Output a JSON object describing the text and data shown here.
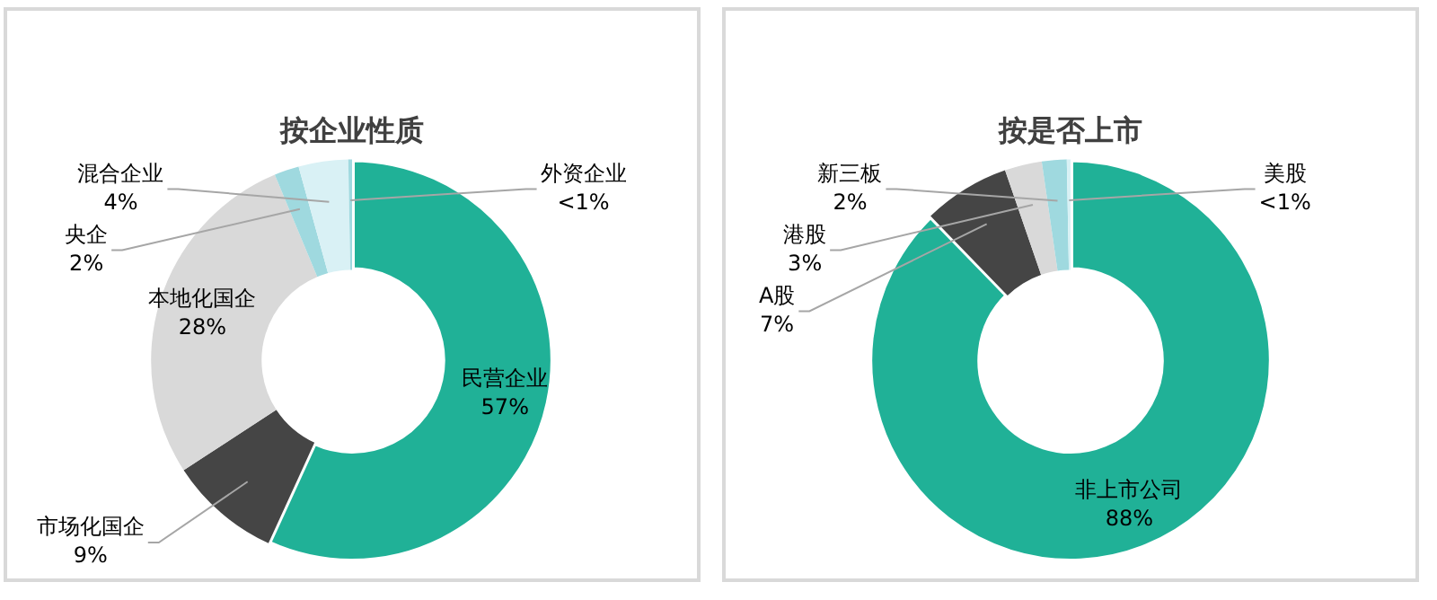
{
  "chart_data": [
    {
      "type": "donut",
      "title": "按企业性质",
      "categories": [
        "民营企业",
        "市场化国企",
        "本地化国企",
        "央企",
        "混合企业",
        "外资企业"
      ],
      "values": [
        57,
        9,
        28,
        2,
        4,
        0.3
      ],
      "value_labels": [
        "57%",
        "9%",
        "28%",
        "2%",
        "4%",
        "<1%"
      ],
      "colors": [
        "#20b197",
        "#454545",
        "#d9d9d9",
        "#9fd9df",
        "#d9f1f5",
        "#9fd9df"
      ],
      "legend": false
    },
    {
      "type": "donut",
      "title": "按是否上市",
      "categories": [
        "非上市公司",
        "A股",
        "港股",
        "新三板",
        "美股"
      ],
      "values": [
        88,
        7,
        3,
        2,
        0.3
      ],
      "value_labels": [
        "88%",
        "7%",
        "3%",
        "2%",
        "<1%"
      ],
      "colors": [
        "#20b197",
        "#454545",
        "#d9d9d9",
        "#9fd9df",
        "#d9f1f5"
      ],
      "legend": false
    }
  ]
}
